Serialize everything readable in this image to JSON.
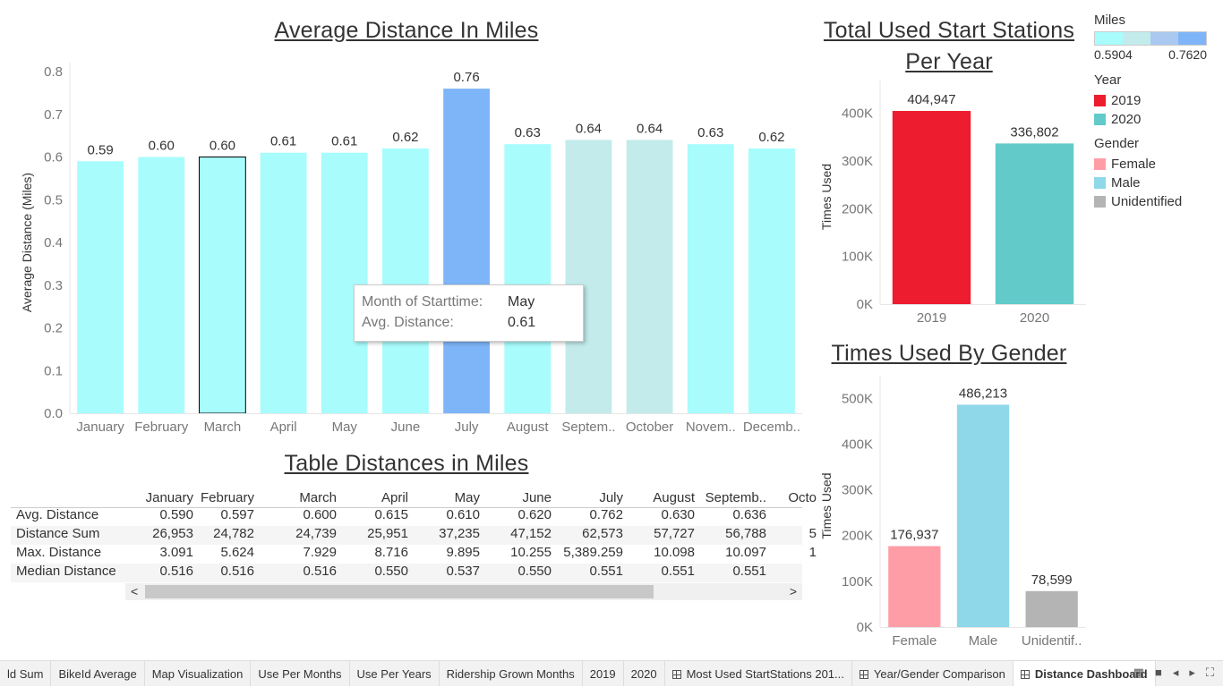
{
  "titles": {
    "avg": "Average Distance In Miles",
    "stations_line1": "Total Used Start Stations",
    "stations_line2": "Per Year",
    "gender": "Times Used By Gender",
    "table": "Table Distances in Miles"
  },
  "legend": {
    "miles_title": "Miles",
    "miles_min": "0.5904",
    "miles_max": "0.7620",
    "year_title": "Year",
    "years": [
      {
        "label": "2019",
        "color": "#ed1c2e"
      },
      {
        "label": "2020",
        "color": "#62cbc9"
      }
    ],
    "gender_title": "Gender",
    "genders": [
      {
        "label": "Female",
        "color": "#ff9da6"
      },
      {
        "label": "Male",
        "color": "#8ed8e9"
      },
      {
        "label": "Unidentified",
        "color": "#b4b4b4"
      }
    ]
  },
  "tooltip": {
    "k1": "Month of Starttime:",
    "v1": "May",
    "k2": "Avg. Distance:",
    "v2": "0.61"
  },
  "chart_data": [
    {
      "type": "bar",
      "title": "Average Distance In Miles",
      "ylabel": "Average Distance (Miles)",
      "ylim": [
        0,
        0.8
      ],
      "yticks": [
        "0.0",
        "0.1",
        "0.2",
        "0.3",
        "0.4",
        "0.5",
        "0.6",
        "0.7",
        "0.8"
      ],
      "categories": [
        "January",
        "February",
        "March",
        "April",
        "May",
        "June",
        "July",
        "August",
        "Septem..",
        "October",
        "Novem..",
        "Decemb.."
      ],
      "values": [
        0.59,
        0.6,
        0.6,
        0.61,
        0.61,
        0.62,
        0.76,
        0.63,
        0.64,
        0.64,
        0.63,
        0.62
      ],
      "labels": [
        "0.59",
        "0.60",
        "0.60",
        "0.61",
        "0.61",
        "0.62",
        "0.76",
        "0.63",
        "0.64",
        "0.64",
        "0.63",
        "0.62"
      ],
      "colors": [
        "#a8fcfc",
        "#a8fcfc",
        "#a8fcfc",
        "#a8fcfc",
        "#a8fcfc",
        "#a8fcfc",
        "#7eb5f8",
        "#a8fcfc",
        "#c3ebeb",
        "#c3ebeb",
        "#a8fcfc",
        "#a8fcfc"
      ],
      "selected": 2
    },
    {
      "type": "bar",
      "title": "Total Used Start Stations Per Year",
      "ylabel": "Times Used",
      "ylim": [
        0,
        450000
      ],
      "yticks": [
        "0K",
        "100K",
        "200K",
        "300K",
        "400K"
      ],
      "categories": [
        "2019",
        "2020"
      ],
      "values": [
        404947,
        336802
      ],
      "labels": [
        "404,947",
        "336,802"
      ],
      "colors": [
        "#ed1c2e",
        "#62cbc9"
      ]
    },
    {
      "type": "bar",
      "title": "Times Used By Gender",
      "ylabel": "Times Used",
      "ylim": [
        0,
        530000
      ],
      "yticks": [
        "0K",
        "100K",
        "200K",
        "300K",
        "400K",
        "500K"
      ],
      "categories": [
        "Female",
        "Male",
        "Unidentif.."
      ],
      "values": [
        176937,
        486213,
        78599
      ],
      "labels": [
        "176,937",
        "486,213",
        "78,599"
      ],
      "colors": [
        "#ff9da6",
        "#8ed8e9",
        "#b4b4b4"
      ]
    }
  ],
  "table": {
    "columns": [
      "January",
      "February",
      "March",
      "April",
      "May",
      "June",
      "July",
      "August",
      "Septemb..",
      "Octo"
    ],
    "rows": [
      {
        "label": "Avg. Distance",
        "cells": [
          "0.590",
          "0.597",
          "0.600",
          "0.615",
          "0.610",
          "0.620",
          "0.762",
          "0.630",
          "0.636",
          ""
        ]
      },
      {
        "label": "Distance Sum",
        "cells": [
          "26,953",
          "24,782",
          "24,739",
          "25,951",
          "37,235",
          "47,152",
          "62,573",
          "57,727",
          "56,788",
          "5"
        ]
      },
      {
        "label": "Max. Distance",
        "cells": [
          "3.091",
          "5.624",
          "7.929",
          "8.716",
          "9.895",
          "10.255",
          "5,389.259",
          "10.098",
          "10.097",
          "1"
        ]
      },
      {
        "label": "Median Distance",
        "cells": [
          "0.516",
          "0.516",
          "0.516",
          "0.550",
          "0.537",
          "0.550",
          "0.551",
          "0.551",
          "0.551",
          ""
        ]
      }
    ]
  },
  "tabs": [
    {
      "label": "ld Sum",
      "grid": false,
      "active": false
    },
    {
      "label": "BikeId Average",
      "grid": false,
      "active": false
    },
    {
      "label": "Map Visualization",
      "grid": false,
      "active": false
    },
    {
      "label": "Use Per Months",
      "grid": false,
      "active": false
    },
    {
      "label": "Use Per Years",
      "grid": false,
      "active": false
    },
    {
      "label": "Ridership Grown Months",
      "grid": false,
      "active": false
    },
    {
      "label": "2019",
      "grid": false,
      "active": false
    },
    {
      "label": "2020",
      "grid": false,
      "active": false
    },
    {
      "label": "Most Used StartStations 201...",
      "grid": true,
      "active": false
    },
    {
      "label": "Year/Gender Comparison",
      "grid": true,
      "active": false
    },
    {
      "label": "Distance Dashboard",
      "grid": true,
      "active": true
    }
  ],
  "controls": {
    "prev": "◂",
    "next": "▸",
    "scroll_left": "<",
    "scroll_right": ">"
  }
}
